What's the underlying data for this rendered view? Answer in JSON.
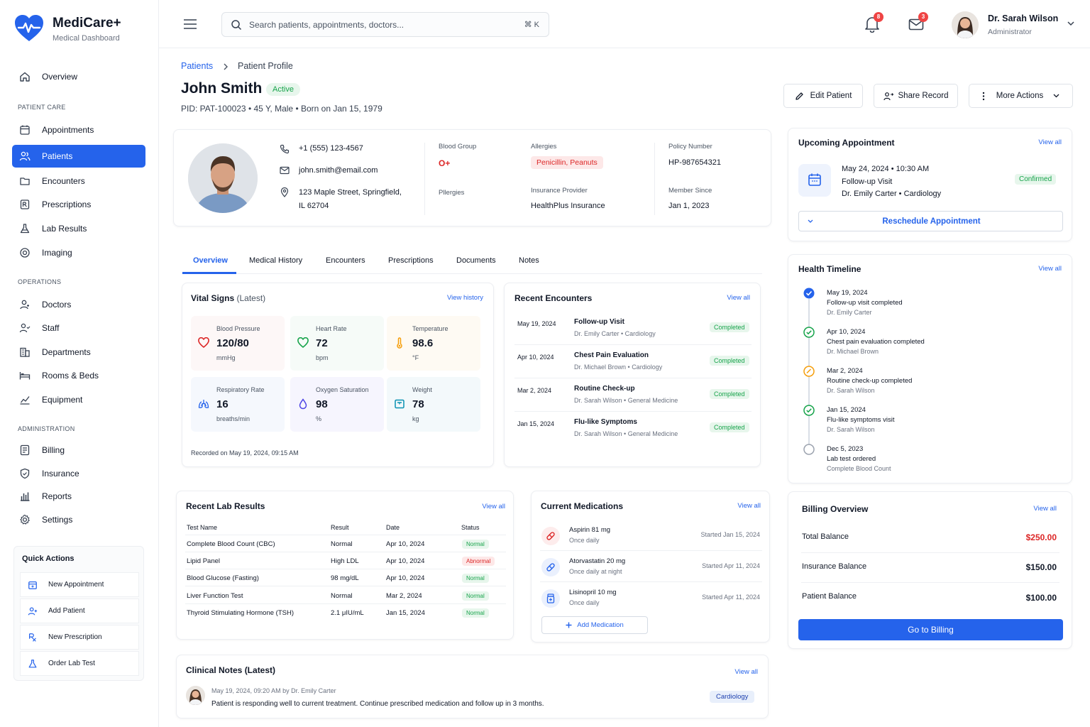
{
  "brand": {
    "name": "MediCare+",
    "subtitle": "Medical Dashboard",
    "color": "#2563eb"
  },
  "sidebar": {
    "overview": "Overview",
    "sections": {
      "patient_care": "PATIENT CARE",
      "operations": "OPERATIONS",
      "administration": "ADMINISTRATION"
    },
    "items": [
      {
        "label": "Appointments",
        "icon": "calendar-icon"
      },
      {
        "label": "Patients",
        "icon": "users-icon",
        "active": true
      },
      {
        "label": "Encounters",
        "icon": "folder-icon"
      },
      {
        "label": "Prescriptions",
        "icon": "prescription-icon"
      },
      {
        "label": "Lab Results",
        "icon": "flask-icon"
      },
      {
        "label": "Imaging",
        "icon": "imaging-icon"
      },
      {
        "label": "Doctors",
        "icon": "doctor-icon"
      },
      {
        "label": "Staff",
        "icon": "staff-icon"
      },
      {
        "label": "Departments",
        "icon": "building-icon"
      },
      {
        "label": "Rooms & Beds",
        "icon": "bed-icon"
      },
      {
        "label": "Equipment",
        "icon": "equipment-icon"
      },
      {
        "label": "Billing",
        "icon": "billing-icon"
      },
      {
        "label": "Insurance",
        "icon": "shield-icon"
      },
      {
        "label": "Reports",
        "icon": "chart-icon"
      },
      {
        "label": "Settings",
        "icon": "gear-icon"
      }
    ],
    "quick_actions": {
      "title": "Quick Actions",
      "items": [
        "New Appointment",
        "Add Patient",
        "New Prescription",
        "Order Lab Test"
      ]
    }
  },
  "header": {
    "search_placeholder": "Search patients, appointments, doctors...",
    "shortcut": "⌘ K",
    "notifications_count": "8",
    "messages_count": "3",
    "user_name": "Dr. Sarah Wilson",
    "user_role": "Administrator"
  },
  "breadcrumb": {
    "parent": "Patients",
    "current": "Patient Profile"
  },
  "patient": {
    "name": "John Smith",
    "status": "Active",
    "pid": "PID: PAT-100023",
    "age_gender": "45 Y, Male",
    "born": "Born on Jan 15, 1979",
    "phone": "+1 (555) 123-4567",
    "email": "john.smith@email.com",
    "address_line1": "123 Maple Street, Springfield,",
    "address_line2": "IL 62704",
    "blood_group_label": "Blood Group",
    "blood_group": "O+",
    "allergies_label": "Allergies",
    "allergies": "Penicillin, Peanuts",
    "pillergies_label": "Pllergies",
    "insurance_provider_label": "Insurance Provider",
    "insurance_provider": "HealthPlus Insurance",
    "policy_label": "Policy Number",
    "policy": "HP-987654321",
    "member_since_label": "Member Since",
    "member_since": "Jan 1, 2023"
  },
  "actions": {
    "edit": "Edit Patient",
    "share": "Share Record",
    "more": "More Actions"
  },
  "tabs": [
    "Overview",
    "Medical History",
    "Encounters",
    "Prescriptions",
    "Documents",
    "Notes"
  ],
  "vitals": {
    "title": "Vital Signs",
    "title_suffix": "(Latest)",
    "view_history": "View history",
    "items": [
      {
        "name": "Blood Pressure",
        "value": "120/80",
        "unit": "mmHg"
      },
      {
        "name": "Heart Rate",
        "value": "72",
        "unit": "bpm"
      },
      {
        "name": "Temperature",
        "value": "98.6",
        "unit": "°F"
      },
      {
        "name": "Respiratory Rate",
        "value": "16",
        "unit": "breaths/min"
      },
      {
        "name": "Oxygen Saturation",
        "value": "98",
        "unit": "%"
      },
      {
        "name": "Weight",
        "value": "78",
        "unit": "kg"
      }
    ],
    "recorded": "Recorded on May 19, 2024, 09:15 AM"
  },
  "encounters": {
    "title": "Recent Encounters",
    "view_all": "View all",
    "items": [
      {
        "date": "May 19, 2024",
        "title": "Follow-up Visit",
        "doctor": "Dr. Emily Carter",
        "dept": "Cardiology",
        "status": "Completed"
      },
      {
        "date": "Apr 10, 2024",
        "title": "Chest Pain Evaluation",
        "doctor": "Dr. Michael Brown",
        "dept": "Cardiology",
        "status": "Completed"
      },
      {
        "date": "Mar 2, 2024",
        "title": "Routine Check-up",
        "doctor": "Dr. Sarah Wilson",
        "dept": "General Medicine",
        "status": "Completed"
      },
      {
        "date": "Jan 15, 2024",
        "title": "Flu-like Symptoms",
        "doctor": "Dr. Sarah Wilson",
        "dept": "General Medicine",
        "status": "Completed"
      }
    ]
  },
  "upcoming": {
    "title": "Upcoming Appointment",
    "view_all": "View all",
    "date": "May 24, 2024",
    "time": "10:30 AM",
    "type": "Follow-up Visit",
    "doctor": "Dr. Emily Carter",
    "dept": "Cardiology",
    "status": "Confirmed",
    "reschedule": "Reschedule Appointment"
  },
  "timeline": {
    "title": "Health Timeline",
    "view_all": "View all",
    "items": [
      {
        "date": "May 19, 2024",
        "event": "Follow-up visit completed",
        "by": "Dr. Emily Carter",
        "state": "current"
      },
      {
        "date": "Apr 10, 2024",
        "event": "Chest pain evaluation completed",
        "by": "Dr. Michael Brown",
        "state": "done"
      },
      {
        "date": "Mar 2, 2024",
        "event": "Routine check-up completed",
        "by": "Dr. Sarah Wilson",
        "state": "warn"
      },
      {
        "date": "Jan 15, 2024",
        "event": "Flu-like symptoms visit",
        "by": "Dr. Sarah Wilson",
        "state": "done"
      },
      {
        "date": "Dec 5, 2023",
        "event": "Lab test ordered",
        "by": "Complete Blood Count",
        "state": "pending"
      }
    ]
  },
  "labs": {
    "title": "Recent Lab Results",
    "view_all": "View all",
    "columns": [
      "Test Name",
      "Result",
      "Date",
      "Status"
    ],
    "rows": [
      {
        "name": "Complete Blood Count (CBC)",
        "result": "Normal",
        "date": "Apr 10, 2024",
        "status": "Normal"
      },
      {
        "name": "Lipid Panel",
        "result": "High LDL",
        "date": "Apr 10, 2024",
        "status": "Abnormal"
      },
      {
        "name": "Blood Glucose (Fasting)",
        "result": "98 mg/dL",
        "date": "Apr 10, 2024",
        "status": "Normal"
      },
      {
        "name": "Liver Function Test",
        "result": "Normal",
        "date": "Mar 2, 2024",
        "status": "Normal"
      },
      {
        "name": "Thyroid Stimulating Hormone (TSH)",
        "result": "2.1 μIU/mL",
        "date": "Jan 15, 2024",
        "status": "Normal"
      }
    ]
  },
  "medications": {
    "title": "Current Medications",
    "view_all": "View all",
    "items": [
      {
        "name": "Aspirin 81 mg",
        "freq": "Once daily",
        "started": "Started  Jan 15, 2024",
        "color": "#dc2626"
      },
      {
        "name": "Atorvastatin 20 mg",
        "freq": "Once daily at night",
        "started": "Started  Apr 11, 2024",
        "color": "#2563eb"
      },
      {
        "name": "Lisinopril 10 mg",
        "freq": "Once daily",
        "started": "Started  Apr 11, 2024",
        "color": "#2563eb"
      }
    ],
    "add_label": "Add Medication"
  },
  "billing": {
    "title": "Billing Overview",
    "view_all": "View all",
    "rows": [
      {
        "label": "Total Balance",
        "value": "$250.00",
        "color": "#dc2626"
      },
      {
        "label": "Insurance Balance",
        "value": "$150.00",
        "color": "#111827"
      },
      {
        "label": "Patient Balance",
        "value": "$100.00",
        "color": "#111827"
      }
    ],
    "button": "Go to Billing"
  },
  "notes": {
    "title": "Clinical Notes (Latest)",
    "view_all": "View all",
    "meta": "May 19, 2024, 09:20 AM by Dr. Emily Carter",
    "text": "Patient is responding well to current treatment. Continue prescribed medication and follow up in 3 months.",
    "tag": "Cardiology"
  }
}
